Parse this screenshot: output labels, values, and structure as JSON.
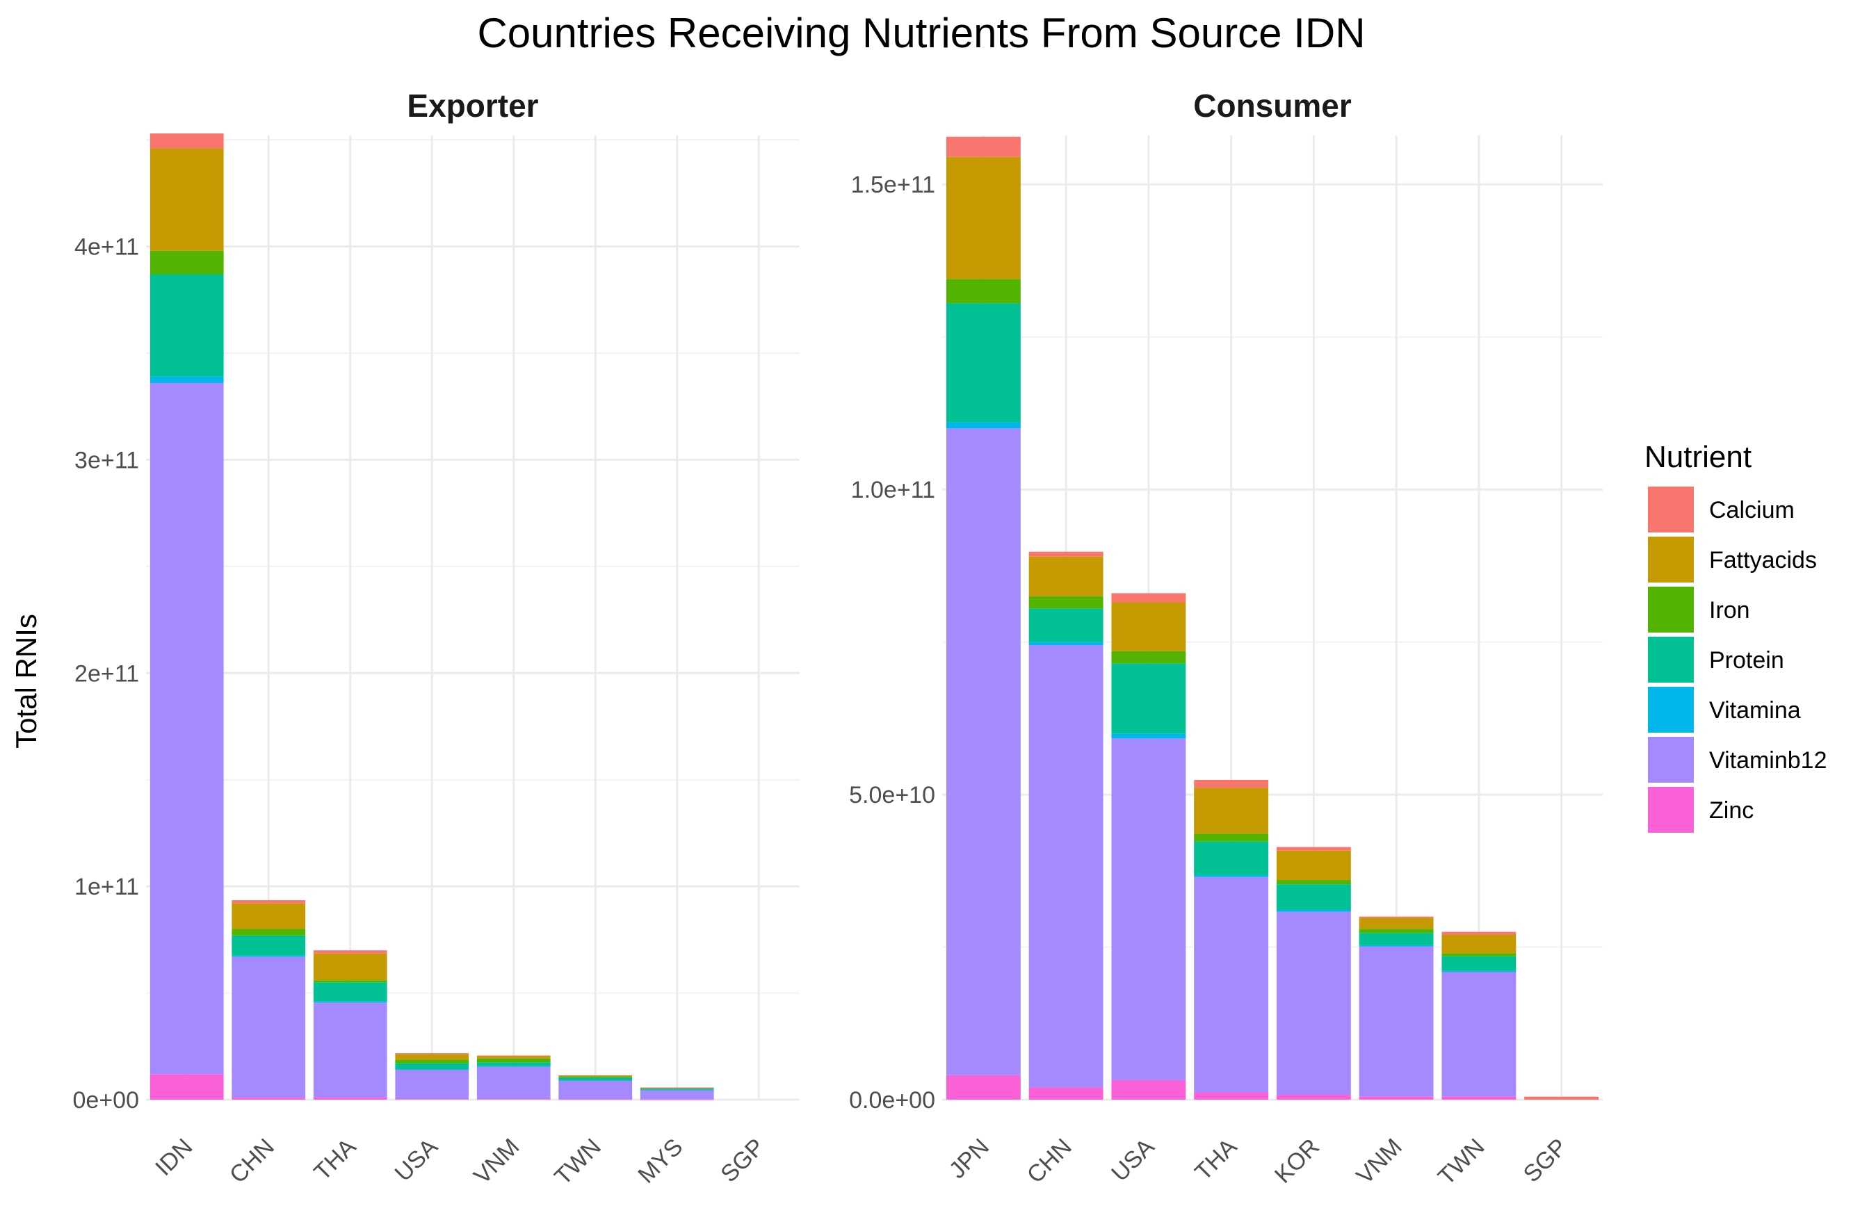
{
  "chart_data": {
    "type": "bar",
    "stacked": true,
    "title": "Countries Receiving Nutrients From Source IDN",
    "ylabel": "Total RNIs",
    "legend_title": "Nutrient",
    "legend_position": "right",
    "grid": true,
    "nutrients": [
      "Calcium",
      "Fattyacids",
      "Iron",
      "Protein",
      "Vitamina",
      "Vitaminb12",
      "Zinc"
    ],
    "colors": [
      "#F8766D",
      "#C49A00",
      "#53B400",
      "#00C094",
      "#00B6EB",
      "#A58AFF",
      "#FB61D7"
    ],
    "panels": [
      {
        "name": "Exporter",
        "ylim": [
          0,
          452000000000
        ],
        "yticks": [
          0,
          100000000000,
          200000000000,
          300000000000,
          400000000000
        ],
        "ytick_labels": [
          "0e+00",
          "1e+11",
          "2e+11",
          "3e+11",
          "4e+11"
        ],
        "categories": [
          "IDN",
          "CHN",
          "THA",
          "USA",
          "VNM",
          "TWN",
          "MYS",
          "SGP"
        ],
        "series": [
          {
            "name": "Zinc",
            "values": [
              12000000000,
              1000000000,
              1000000000,
              300000000,
              300000000,
              200000000,
              100000000,
              0
            ]
          },
          {
            "name": "Vitaminb12",
            "values": [
              324000000000,
              66000000000,
              44500000000,
              13700000000,
              15200000000,
              8800000000,
              4500000000,
              0
            ]
          },
          {
            "name": "Vitamina",
            "values": [
              3000000000,
              500000000,
              500000000,
              200000000,
              200000000,
              100000000,
              50000000,
              0
            ]
          },
          {
            "name": "Protein",
            "values": [
              48000000000,
              9500000000,
              9000000000,
              2800000000,
              1800000000,
              1200000000,
              500000000,
              0
            ]
          },
          {
            "name": "Iron",
            "values": [
              11000000000,
              3000000000,
              1000000000,
              1800000000,
              1800000000,
              600000000,
              300000000,
              0
            ]
          },
          {
            "name": "Fattyacids",
            "values": [
              48000000000,
              12000000000,
              12500000000,
              2500000000,
              1200000000,
              400000000,
              200000000,
              0
            ]
          },
          {
            "name": "Calcium",
            "values": [
              7000000000,
              1500000000,
              1500000000,
              500000000,
              200000000,
              100000000,
              50000000,
              0
            ]
          }
        ]
      },
      {
        "name": "Consumer",
        "ylim": [
          0,
          158000000000
        ],
        "yticks": [
          0,
          50000000000,
          100000000000,
          150000000000
        ],
        "ytick_labels": [
          "0.0e+00",
          "5.0e+10",
          "1.0e+11",
          "1.5e+11"
        ],
        "categories": [
          "JPN",
          "CHN",
          "USA",
          "THA",
          "KOR",
          "VNM",
          "TWN",
          "SGP"
        ],
        "series": [
          {
            "name": "Zinc",
            "values": [
              4000000000,
              2000000000,
              3200000000,
              1200000000,
              800000000,
              500000000,
              500000000,
              0
            ]
          },
          {
            "name": "Vitaminb12",
            "values": [
              106000000000,
              72500000000,
              56000000000,
              35300000000,
              30000000000,
              24600000000,
              20400000000,
              0
            ]
          },
          {
            "name": "Vitamina",
            "values": [
              1000000000,
              500000000,
              800000000,
              300000000,
              300000000,
              200000000,
              200000000,
              0
            ]
          },
          {
            "name": "Protein",
            "values": [
              19500000000,
              5500000000,
              11500000000,
              5500000000,
              4200000000,
              2000000000,
              2400000000,
              0
            ]
          },
          {
            "name": "Iron",
            "values": [
              4000000000,
              2000000000,
              2000000000,
              1300000000,
              700000000,
              700000000,
              500000000,
              0
            ]
          },
          {
            "name": "Fattyacids",
            "values": [
              20000000000,
              6500000000,
              8000000000,
              7500000000,
              4800000000,
              1800000000,
              3000000000,
              0
            ]
          },
          {
            "name": "Calcium",
            "values": [
              3300000000,
              800000000,
              1500000000,
              1300000000,
              600000000,
              200000000,
              500000000,
              500000000
            ]
          }
        ]
      }
    ]
  }
}
